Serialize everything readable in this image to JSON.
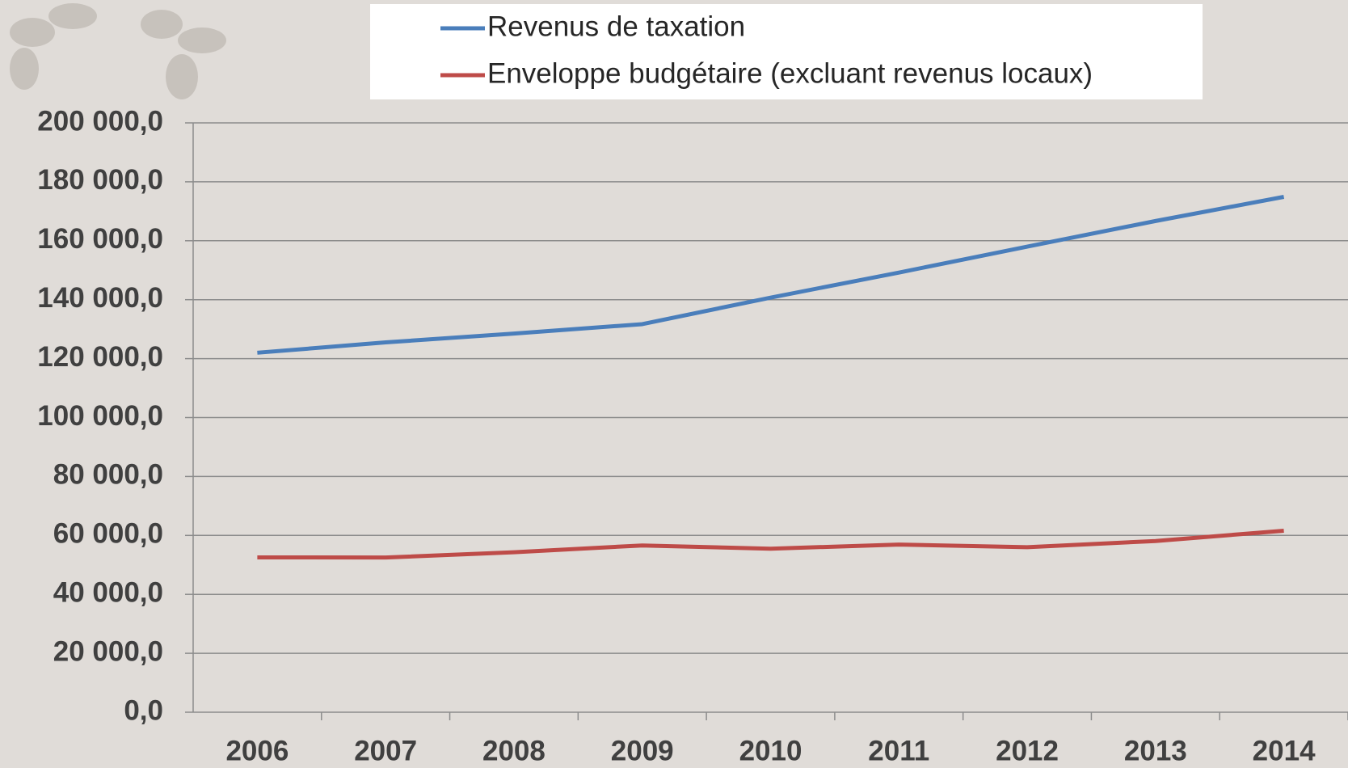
{
  "chart_data": {
    "type": "line",
    "categories": [
      "2006",
      "2007",
      "2008",
      "2009",
      "2010",
      "2011",
      "2012",
      "2013",
      "2014"
    ],
    "series": [
      {
        "name": "Revenus de taxation",
        "color": "#4a7ebb",
        "values": [
          122000,
          125500,
          128500,
          131700,
          140700,
          149200,
          158000,
          166700,
          174900
        ]
      },
      {
        "name": "Enveloppe budgétaire (excluant revenus locaux)",
        "color": "#be4b48",
        "values": [
          52550,
          52500,
          54300,
          56600,
          55500,
          56900,
          56000,
          58100,
          61600
        ]
      }
    ],
    "ylim": [
      0,
      200000
    ],
    "yticks": [
      {
        "value": 0,
        "label": "0,0"
      },
      {
        "value": 20000,
        "label": "20 000,0"
      },
      {
        "value": 40000,
        "label": "40 000,0"
      },
      {
        "value": 60000,
        "label": "60 000,0"
      },
      {
        "value": 80000,
        "label": "80 000,0"
      },
      {
        "value": 100000,
        "label": "100 000,0"
      },
      {
        "value": 120000,
        "label": "120 000,0"
      },
      {
        "value": 140000,
        "label": "140 000,0"
      },
      {
        "value": 160000,
        "label": "160 000,0"
      },
      {
        "value": 180000,
        "label": "180 000,0"
      },
      {
        "value": 200000,
        "label": "200 000,0"
      }
    ],
    "grid": true
  }
}
